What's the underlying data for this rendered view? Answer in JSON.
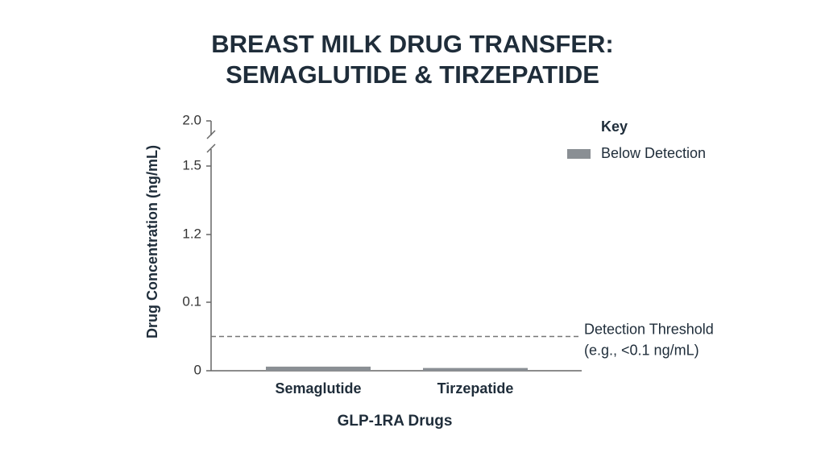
{
  "chart_data": {
    "type": "bar",
    "title": [
      "BREAST MILK DRUG TRANSFER:",
      "SEMAGLUTIDE & TIRZEPATIDE"
    ],
    "x_label": "GLP-1RA Drugs",
    "y_label": "Drug Concentration (ng/mL)",
    "categories": [
      "Semaglutide",
      "Tirzepatide"
    ],
    "series": [
      {
        "name": "Below Detection",
        "color": "#8a8f94",
        "values": [
          0.006,
          0.004
        ]
      }
    ],
    "legend_title": "Key",
    "legend": "upper right",
    "ylim": [
      0,
      2
    ],
    "yticks": [
      0,
      0.1,
      1.2,
      1.5,
      {
        "value": 2,
        "label": "2.0"
      }
    ],
    "axis_break": true,
    "threshold": {
      "value": 0.05,
      "label": [
        "Detection Threshold",
        "(e.g., <0.1 ng/mL)"
      ]
    }
  }
}
